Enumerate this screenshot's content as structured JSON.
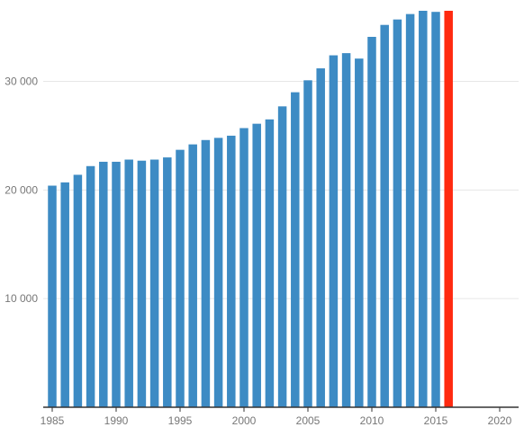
{
  "chart_data": {
    "type": "bar",
    "title": "",
    "xlabel": "",
    "ylabel": "",
    "x": [
      1985,
      1986,
      1987,
      1988,
      1989,
      1990,
      1991,
      1992,
      1993,
      1994,
      1995,
      1996,
      1997,
      1998,
      1999,
      2000,
      2001,
      2002,
      2003,
      2004,
      2005,
      2006,
      2007,
      2008,
      2009,
      2010,
      2011,
      2012,
      2013,
      2014,
      2015,
      2016
    ],
    "values": [
      20400,
      20700,
      21400,
      22200,
      22600,
      22600,
      22800,
      22700,
      22800,
      23000,
      23700,
      24200,
      24600,
      24800,
      25000,
      25700,
      26100,
      26500,
      27700,
      29000,
      30100,
      31200,
      32400,
      32600,
      32100,
      34100,
      35200,
      35700,
      36200,
      36500,
      36400,
      36500
    ],
    "highlight_x": 2016,
    "colors": {
      "bar": "#3d8bc4",
      "highlight": "#ff2a10"
    },
    "xlim": [
      1985,
      2020
    ],
    "ylim": [
      0,
      36500
    ],
    "x_ticks": [
      {
        "value": 1985,
        "label": "1985"
      },
      {
        "value": 1990,
        "label": "1990"
      },
      {
        "value": 1995,
        "label": "1995"
      },
      {
        "value": 2000,
        "label": "2000"
      },
      {
        "value": 2005,
        "label": "2005"
      },
      {
        "value": 2010,
        "label": "2010"
      },
      {
        "value": 2015,
        "label": "2015"
      },
      {
        "value": 2020,
        "label": "2020"
      }
    ],
    "y_ticks": [
      {
        "value": 10000,
        "label": "10 000"
      },
      {
        "value": 20000,
        "label": "20 000"
      },
      {
        "value": 30000,
        "label": "30 000"
      }
    ],
    "grid": true,
    "legend": "none"
  }
}
